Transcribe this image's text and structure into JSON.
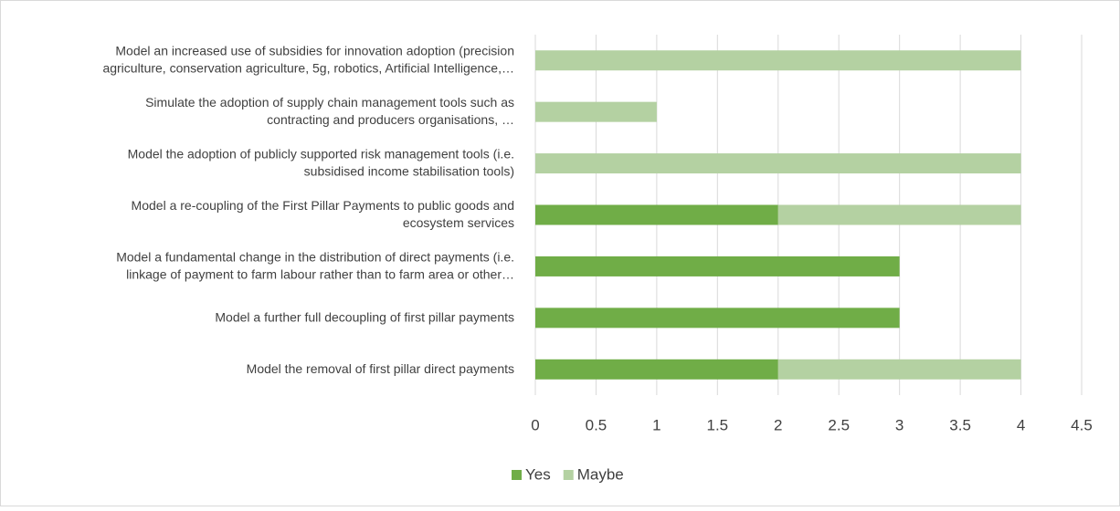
{
  "chart_data": {
    "type": "bar",
    "orientation": "horizontal",
    "stacked": true,
    "categories": [
      "Model an increased use of subsidies for innovation adoption (precision\nagriculture, conservation agriculture, 5g, robotics, Artificial Intelligence,…",
      "Simulate the adoption of supply chain management tools such as\ncontracting and producers organisations, …",
      "Model the adoption of publicly supported risk management tools (i.e.\nsubsidised income stabilisation tools)",
      "Model a re-coupling of the First Pillar Payments to public goods and\necosystem services",
      "Model a fundamental change in the distribution of direct payments (i.e.\nlinkage of payment to farm labour rather than to farm area or other…",
      "Model a further full decoupling of first pillar payments",
      "Model the removal of first pillar direct payments"
    ],
    "series": [
      {
        "name": "Yes",
        "color": "#70ad47",
        "values": [
          0,
          0,
          0,
          2,
          3,
          3,
          2
        ]
      },
      {
        "name": "Maybe",
        "color": "#b4d1a2",
        "values": [
          4,
          1,
          4,
          2,
          0,
          0,
          2
        ]
      }
    ],
    "xlim": [
      0,
      4.5
    ],
    "xticks": [
      0,
      0.5,
      1,
      1.5,
      2,
      2.5,
      3,
      3.5,
      4,
      4.5
    ],
    "grid": true,
    "legend": "bottom"
  }
}
